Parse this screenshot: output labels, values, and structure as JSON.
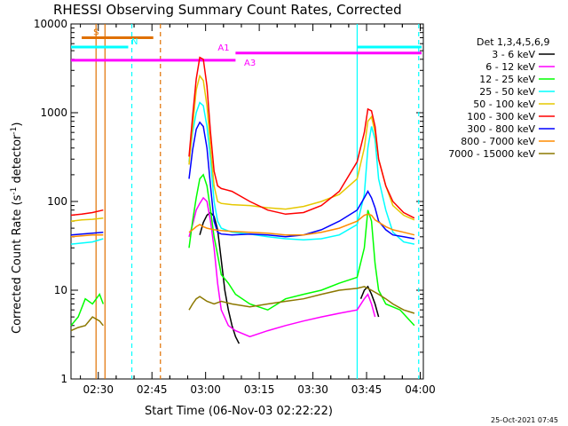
{
  "colors": {
    "3 - 6 keV": "#000000",
    "6 - 12 keV": "#ff00ff",
    "12 - 25 keV": "#00ff00",
    "25 - 50 keV": "#00ffff",
    "50 - 100 keV": "#e6c800",
    "100 - 300 keV": "#ff0000",
    "300 - 800 keV": "#0000ff",
    "800 - 7000 keV": "#ff8c00",
    "7000 - 15000 keV": "#8c7800",
    "cyan_marker": "#00ffff",
    "orange_marker": "#e07000",
    "magenta_marker": "#ff00ff"
  },
  "chart_data": {
    "type": "line",
    "title": "RHESSI Observing Summary Count Rates, Corrected",
    "xlabel": "Start Time (06-Nov-03 02:22:22)",
    "ylabel": "Corrected Count Rate (s⁻¹ detector⁻¹)",
    "ylabel_main": "Corrected Count Rate (s",
    "ylabel_sup1": "-1",
    "ylabel_mid": " detector",
    "ylabel_sup2": "-1",
    "ylabel_end": ")",
    "x_ticks": [
      "02:30",
      "02:45",
      "03:00",
      "03:15",
      "03:30",
      "03:45",
      "04:00"
    ],
    "x_tick_minutes": [
      7.63,
      22.63,
      37.63,
      52.63,
      67.63,
      82.63,
      97.63
    ],
    "xlim_minutes": [
      0,
      98.5
    ],
    "y_ticks": [
      "1",
      "10",
      "100",
      "1000",
      "10000"
    ],
    "y_tick_values": [
      1,
      10,
      100,
      1000,
      10000
    ],
    "ylim": [
      1,
      10000
    ],
    "y_scale": "log",
    "legend_title": "Det 1,3,4,5,6,9",
    "legend_position": "top-right",
    "timestamp": "25-Oct-2021 07:45",
    "annotations": {
      "S": "S",
      "N": "N",
      "A1": "A1",
      "A3": "A3"
    },
    "series": [
      {
        "name": "3 - 6 keV",
        "points": [
          [
            36,
            42
          ],
          [
            37,
            58
          ],
          [
            38,
            70
          ],
          [
            39,
            75
          ],
          [
            40,
            68
          ],
          [
            41,
            48
          ],
          [
            42,
            22
          ],
          [
            43,
            10
          ],
          [
            44,
            6
          ],
          [
            45,
            4
          ],
          [
            46,
            3
          ],
          [
            47,
            2.5
          ],
          [
            81,
            8
          ],
          [
            82,
            10
          ],
          [
            83,
            11
          ],
          [
            84,
            9
          ],
          [
            85,
            7
          ],
          [
            86,
            5
          ]
        ]
      },
      {
        "name": "6 - 12 keV",
        "points": [
          [
            33,
            40
          ],
          [
            34,
            55
          ],
          [
            35,
            80
          ],
          [
            36,
            95
          ],
          [
            37,
            110
          ],
          [
            38,
            100
          ],
          [
            39,
            60
          ],
          [
            40,
            30
          ],
          [
            41,
            12
          ],
          [
            42,
            6
          ],
          [
            44,
            4
          ],
          [
            46,
            3.5
          ],
          [
            50,
            3
          ],
          [
            55,
            3.5
          ],
          [
            60,
            4
          ],
          [
            65,
            4.5
          ],
          [
            70,
            5
          ],
          [
            75,
            5.5
          ],
          [
            80,
            6
          ],
          [
            82,
            8
          ],
          [
            83,
            9
          ],
          [
            84,
            7
          ],
          [
            85,
            5
          ]
        ]
      },
      {
        "name": "12 - 25 keV",
        "points": [
          [
            0,
            4
          ],
          [
            2,
            5
          ],
          [
            4,
            8
          ],
          [
            6,
            7
          ],
          [
            8,
            9
          ],
          [
            9,
            7
          ],
          [
            33,
            30
          ],
          [
            34,
            60
          ],
          [
            35,
            110
          ],
          [
            36,
            180
          ],
          [
            37,
            200
          ],
          [
            38,
            150
          ],
          [
            39,
            80
          ],
          [
            40,
            40
          ],
          [
            41,
            25
          ],
          [
            42,
            15
          ],
          [
            44,
            12
          ],
          [
            46,
            9
          ],
          [
            50,
            7
          ],
          [
            55,
            6
          ],
          [
            60,
            8
          ],
          [
            65,
            9
          ],
          [
            70,
            10
          ],
          [
            75,
            12
          ],
          [
            80,
            14
          ],
          [
            82,
            30
          ],
          [
            83,
            80
          ],
          [
            84,
            60
          ],
          [
            85,
            20
          ],
          [
            86,
            10
          ],
          [
            88,
            7
          ],
          [
            92,
            6
          ],
          [
            96,
            4
          ]
        ]
      },
      {
        "name": "25 - 50 keV",
        "points": [
          [
            0,
            33
          ],
          [
            3,
            34
          ],
          [
            6,
            35
          ],
          [
            9,
            38
          ],
          [
            33,
            280
          ],
          [
            34,
            600
          ],
          [
            35,
            1000
          ],
          [
            36,
            1300
          ],
          [
            37,
            1200
          ],
          [
            38,
            700
          ],
          [
            39,
            300
          ],
          [
            40,
            100
          ],
          [
            41,
            60
          ],
          [
            42,
            50
          ],
          [
            45,
            45
          ],
          [
            50,
            43
          ],
          [
            55,
            40
          ],
          [
            60,
            38
          ],
          [
            65,
            37
          ],
          [
            70,
            38
          ],
          [
            75,
            42
          ],
          [
            80,
            55
          ],
          [
            82,
            120
          ],
          [
            83,
            400
          ],
          [
            84,
            700
          ],
          [
            85,
            500
          ],
          [
            86,
            180
          ],
          [
            88,
            80
          ],
          [
            90,
            45
          ],
          [
            93,
            35
          ],
          [
            96,
            33
          ]
        ]
      },
      {
        "name": "50 - 100 keV",
        "points": [
          [
            0,
            60
          ],
          [
            3,
            62
          ],
          [
            6,
            63
          ],
          [
            9,
            65
          ],
          [
            33,
            260
          ],
          [
            34,
            700
          ],
          [
            35,
            1800
          ],
          [
            36,
            2600
          ],
          [
            37,
            2300
          ],
          [
            38,
            1200
          ],
          [
            39,
            400
          ],
          [
            40,
            150
          ],
          [
            41,
            100
          ],
          [
            42,
            95
          ],
          [
            45,
            92
          ],
          [
            50,
            90
          ],
          [
            55,
            85
          ],
          [
            60,
            82
          ],
          [
            65,
            88
          ],
          [
            70,
            100
          ],
          [
            75,
            120
          ],
          [
            80,
            180
          ],
          [
            82,
            400
          ],
          [
            83,
            800
          ],
          [
            84,
            900
          ],
          [
            85,
            600
          ],
          [
            86,
            300
          ],
          [
            88,
            150
          ],
          [
            90,
            90
          ],
          [
            93,
            70
          ],
          [
            96,
            62
          ]
        ]
      },
      {
        "name": "100 - 300 keV",
        "points": [
          [
            0,
            70
          ],
          [
            3,
            72
          ],
          [
            6,
            75
          ],
          [
            9,
            80
          ],
          [
            33,
            320
          ],
          [
            34,
            900
          ],
          [
            35,
            2400
          ],
          [
            36,
            4200
          ],
          [
            37,
            4000
          ],
          [
            38,
            2000
          ],
          [
            39,
            600
          ],
          [
            40,
            220
          ],
          [
            41,
            150
          ],
          [
            42,
            140
          ],
          [
            45,
            130
          ],
          [
            50,
            100
          ],
          [
            55,
            80
          ],
          [
            60,
            72
          ],
          [
            65,
            75
          ],
          [
            70,
            90
          ],
          [
            75,
            130
          ],
          [
            80,
            280
          ],
          [
            82,
            600
          ],
          [
            83,
            1100
          ],
          [
            84,
            1050
          ],
          [
            85,
            700
          ],
          [
            86,
            300
          ],
          [
            88,
            150
          ],
          [
            90,
            100
          ],
          [
            93,
            75
          ],
          [
            96,
            65
          ]
        ]
      },
      {
        "name": "300 - 800 keV",
        "points": [
          [
            0,
            42
          ],
          [
            3,
            43
          ],
          [
            6,
            44
          ],
          [
            9,
            45
          ],
          [
            33,
            180
          ],
          [
            34,
            380
          ],
          [
            35,
            650
          ],
          [
            36,
            780
          ],
          [
            37,
            700
          ],
          [
            38,
            400
          ],
          [
            39,
            150
          ],
          [
            40,
            60
          ],
          [
            41,
            45
          ],
          [
            42,
            43
          ],
          [
            45,
            42
          ],
          [
            50,
            43
          ],
          [
            55,
            42
          ],
          [
            60,
            40
          ],
          [
            65,
            42
          ],
          [
            70,
            48
          ],
          [
            75,
            60
          ],
          [
            80,
            80
          ],
          [
            82,
            110
          ],
          [
            83,
            130
          ],
          [
            84,
            110
          ],
          [
            85,
            85
          ],
          [
            86,
            60
          ],
          [
            88,
            48
          ],
          [
            90,
            42
          ],
          [
            93,
            40
          ],
          [
            96,
            38
          ]
        ]
      },
      {
        "name": "800 - 7000 keV",
        "points": [
          [
            0,
            40
          ],
          [
            3,
            41
          ],
          [
            6,
            42
          ],
          [
            9,
            42
          ],
          [
            33,
            45
          ],
          [
            34,
            48
          ],
          [
            35,
            52
          ],
          [
            36,
            55
          ],
          [
            37,
            52
          ],
          [
            38,
            50
          ],
          [
            40,
            48
          ],
          [
            42,
            47
          ],
          [
            45,
            46
          ],
          [
            50,
            45
          ],
          [
            55,
            44
          ],
          [
            60,
            42
          ],
          [
            65,
            42
          ],
          [
            70,
            45
          ],
          [
            75,
            50
          ],
          [
            80,
            60
          ],
          [
            82,
            70
          ],
          [
            83,
            72
          ],
          [
            84,
            70
          ],
          [
            85,
            62
          ],
          [
            88,
            52
          ],
          [
            90,
            48
          ],
          [
            93,
            45
          ],
          [
            96,
            42
          ]
        ]
      },
      {
        "name": "7000 - 15000 keV",
        "points": [
          [
            0,
            3.5
          ],
          [
            2,
            3.8
          ],
          [
            4,
            4
          ],
          [
            6,
            5
          ],
          [
            8,
            4.5
          ],
          [
            9,
            4
          ],
          [
            33,
            6
          ],
          [
            34,
            7
          ],
          [
            35,
            8
          ],
          [
            36,
            8.5
          ],
          [
            37,
            8
          ],
          [
            38,
            7.5
          ],
          [
            40,
            7
          ],
          [
            42,
            7.5
          ],
          [
            45,
            7
          ],
          [
            50,
            6.5
          ],
          [
            55,
            7
          ],
          [
            60,
            7.5
          ],
          [
            65,
            8
          ],
          [
            70,
            9
          ],
          [
            75,
            10
          ],
          [
            80,
            10.5
          ],
          [
            82,
            11
          ],
          [
            84,
            10
          ],
          [
            86,
            9
          ],
          [
            88,
            8
          ],
          [
            90,
            7
          ],
          [
            93,
            6
          ],
          [
            96,
            5.5
          ]
        ]
      }
    ],
    "markers": [
      {
        "label": "S",
        "color": "orange",
        "x_start": 3,
        "x_end": 23,
        "y": 7000
      },
      {
        "label": "N",
        "color": "cyan",
        "x_start": 0,
        "x_end": 16,
        "y": 5500
      },
      {
        "label": "A1",
        "color": "magenta",
        "x_start": 46,
        "x_end": 98,
        "y": 4700
      },
      {
        "label": "A3",
        "color": "magenta",
        "x_start": 0,
        "x_end": 46,
        "y": 3900
      },
      {
        "label": "N",
        "color": "cyan",
        "x_start": 80,
        "x_end": 98,
        "y": 5500
      }
    ],
    "vlines": [
      {
        "x": 7,
        "color": "orange",
        "dashed": false
      },
      {
        "x": 9.5,
        "color": "orange",
        "dashed": false
      },
      {
        "x": 17,
        "color": "cyan",
        "dashed": true
      },
      {
        "x": 25,
        "color": "orange",
        "dashed": true
      },
      {
        "x": 80,
        "color": "cyan",
        "dashed": false
      },
      {
        "x": 97.2,
        "color": "cyan",
        "dashed": true
      }
    ]
  }
}
